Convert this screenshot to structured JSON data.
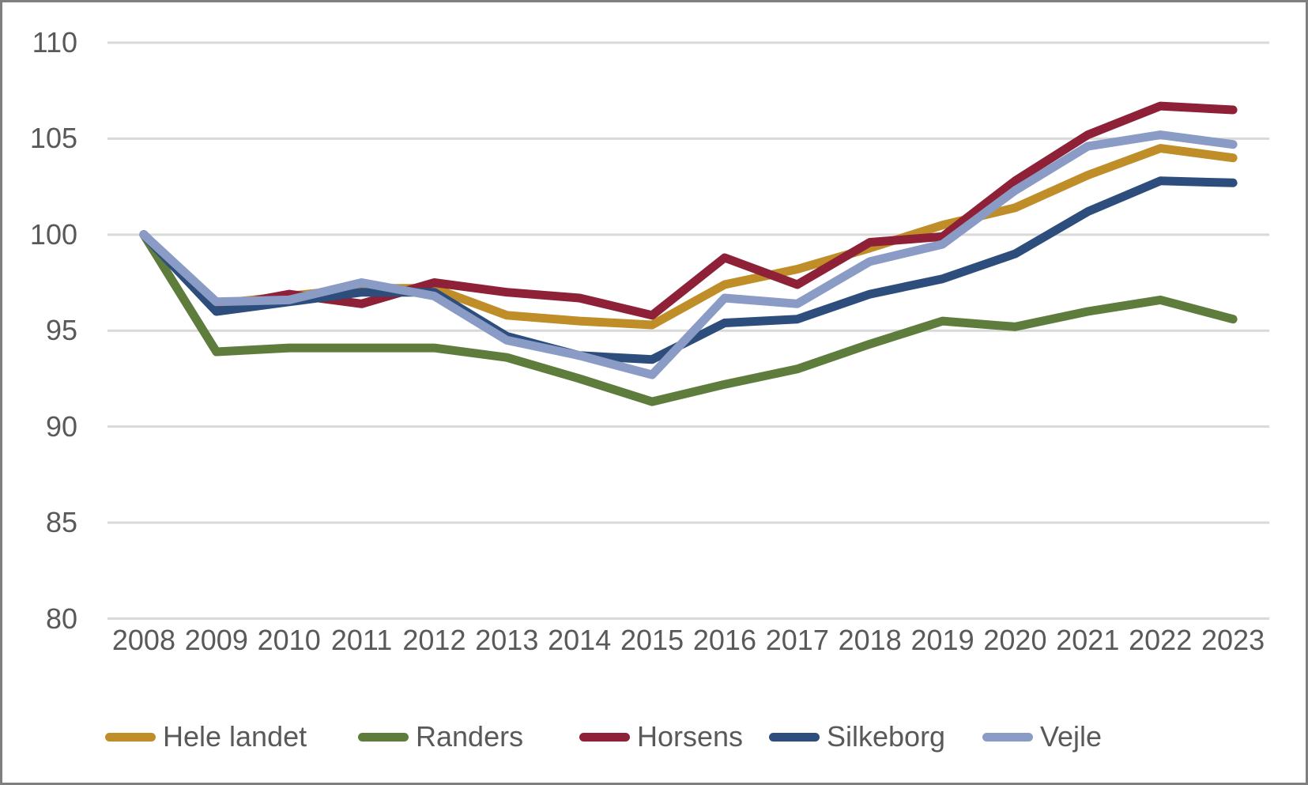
{
  "chart_data": {
    "type": "line",
    "title": "",
    "xlabel": "",
    "ylabel": "",
    "categories": [
      "2008",
      "2009",
      "2010",
      "2011",
      "2012",
      "2013",
      "2014",
      "2015",
      "2016",
      "2017",
      "2018",
      "2019",
      "2020",
      "2021",
      "2022",
      "2023"
    ],
    "series": [
      {
        "name": "Hele landet",
        "color": "#BF8E28",
        "values": [
          100,
          96.4,
          96.8,
          97.2,
          97.2,
          95.8,
          95.5,
          95.3,
          97.4,
          98.2,
          99.3,
          100.5,
          101.4,
          103.1,
          104.5,
          104.0
        ]
      },
      {
        "name": "Randers",
        "color": "#5E7C3C",
        "values": [
          100,
          93.9,
          94.1,
          94.1,
          94.1,
          93.6,
          92.5,
          91.3,
          92.2,
          93.0,
          94.3,
          95.5,
          95.2,
          96.0,
          96.6,
          95.6
        ]
      },
      {
        "name": "Horsens",
        "color": "#8E2137",
        "values": [
          100,
          96.2,
          96.9,
          96.4,
          97.5,
          97.0,
          96.7,
          95.8,
          98.8,
          97.4,
          99.6,
          99.9,
          102.8,
          105.2,
          106.7,
          106.5
        ]
      },
      {
        "name": "Silkeborg",
        "color": "#2D4D7C",
        "values": [
          100,
          96.0,
          96.5,
          97.0,
          97.0,
          94.7,
          93.7,
          93.5,
          95.4,
          95.6,
          96.9,
          97.7,
          99.0,
          101.2,
          102.8,
          102.7
        ]
      },
      {
        "name": "Vejle",
        "color": "#8A9BC5",
        "values": [
          100,
          96.5,
          96.6,
          97.5,
          96.8,
          94.5,
          93.7,
          92.7,
          96.7,
          96.4,
          98.6,
          99.5,
          102.3,
          104.6,
          105.2,
          104.7
        ]
      }
    ],
    "ylim": [
      80,
      110
    ],
    "yticks": [
      "80",
      "85",
      "90",
      "95",
      "100",
      "105",
      "110"
    ],
    "grid": true,
    "gridline_color": "#d9d9d9",
    "tick_text_color": "#595959",
    "legend_position": "bottom"
  },
  "legend": {
    "items": [
      {
        "label": "Hele landet",
        "color": "#BF8E28"
      },
      {
        "label": "Randers",
        "color": "#5E7C3C"
      },
      {
        "label": "Horsens",
        "color": "#8E2137"
      },
      {
        "label": "Silkeborg",
        "color": "#2D4D7C"
      },
      {
        "label": "Vejle",
        "color": "#8A9BC5"
      }
    ]
  }
}
